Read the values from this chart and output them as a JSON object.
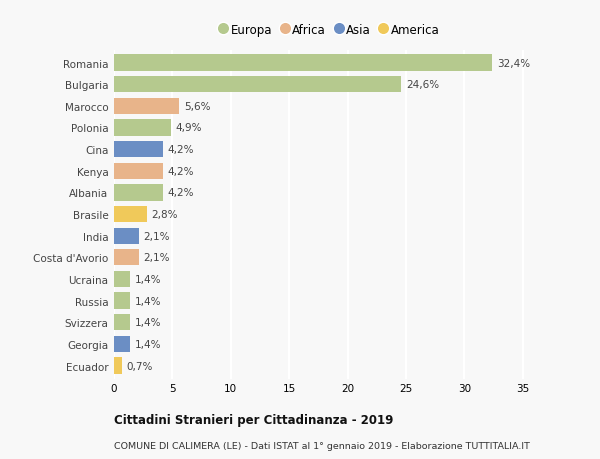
{
  "countries": [
    "Romania",
    "Bulgaria",
    "Marocco",
    "Polonia",
    "Cina",
    "Kenya",
    "Albania",
    "Brasile",
    "India",
    "Costa d'Avorio",
    "Ucraina",
    "Russia",
    "Svizzera",
    "Georgia",
    "Ecuador"
  ],
  "values": [
    32.4,
    24.6,
    5.6,
    4.9,
    4.2,
    4.2,
    4.2,
    2.8,
    2.1,
    2.1,
    1.4,
    1.4,
    1.4,
    1.4,
    0.7
  ],
  "labels": [
    "32,4%",
    "24,6%",
    "5,6%",
    "4,9%",
    "4,2%",
    "4,2%",
    "4,2%",
    "2,8%",
    "2,1%",
    "2,1%",
    "1,4%",
    "1,4%",
    "1,4%",
    "1,4%",
    "0,7%"
  ],
  "continents": [
    "Europa",
    "Europa",
    "Africa",
    "Europa",
    "Asia",
    "Africa",
    "Europa",
    "America",
    "Asia",
    "Africa",
    "Europa",
    "Europa",
    "Europa",
    "Asia",
    "America"
  ],
  "continent_colors": {
    "Europa": "#b5c98e",
    "Africa": "#e8b48a",
    "Asia": "#6b8ec4",
    "America": "#f0c95a"
  },
  "legend_order": [
    "Europa",
    "Africa",
    "Asia",
    "America"
  ],
  "title_bold": "Cittadini Stranieri per Cittadinanza - 2019",
  "subtitle": "COMUNE DI CALIMERA (LE) - Dati ISTAT al 1° gennaio 2019 - Elaborazione TUTTITALIA.IT",
  "xlim": [
    0,
    37
  ],
  "xticks": [
    0,
    5,
    10,
    15,
    20,
    25,
    30,
    35
  ],
  "background_color": "#f8f8f8",
  "grid_color": "#ffffff",
  "bar_height": 0.75
}
